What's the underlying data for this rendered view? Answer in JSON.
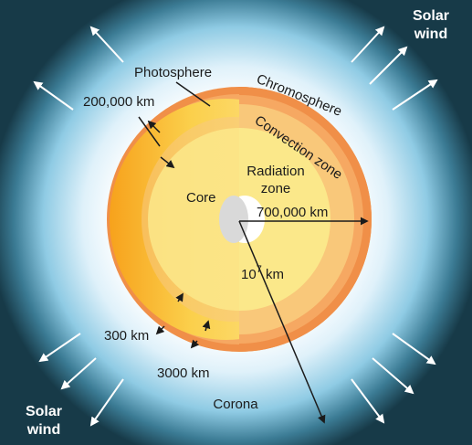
{
  "labels": {
    "solar_wind_top": [
      "Solar",
      "wind"
    ],
    "solar_wind_bottom": [
      "Solar",
      "wind"
    ],
    "photosphere": "Photosphere",
    "chromosphere": "Chromosphere",
    "convection_zone": "Convection zone",
    "radiation_zone": [
      "Radiation",
      "zone"
    ],
    "core": "Core",
    "photosphere_depth": "200,000 km",
    "radius": "700,000 km",
    "distance_base": "10",
    "distance_exp": "7",
    "distance_unit": " km",
    "chromosphere_thickness": "300 km",
    "transition_thickness": "3000 km",
    "corona": "Corona"
  },
  "colors": {
    "background_outer": "#173a48",
    "corona_glow": "#a9d8ee",
    "corona_inner": "#ffffff",
    "chromosphere": "#f08f48",
    "photosphere": "#f6a862",
    "convection_zone": "#f9c87a",
    "radiation_zone": "#fbe88a",
    "core": "#ffffff",
    "solar_wind_arrows": "#ffffff"
  },
  "icons": {
    "solar_wind_arrow": "arrow-icon"
  }
}
